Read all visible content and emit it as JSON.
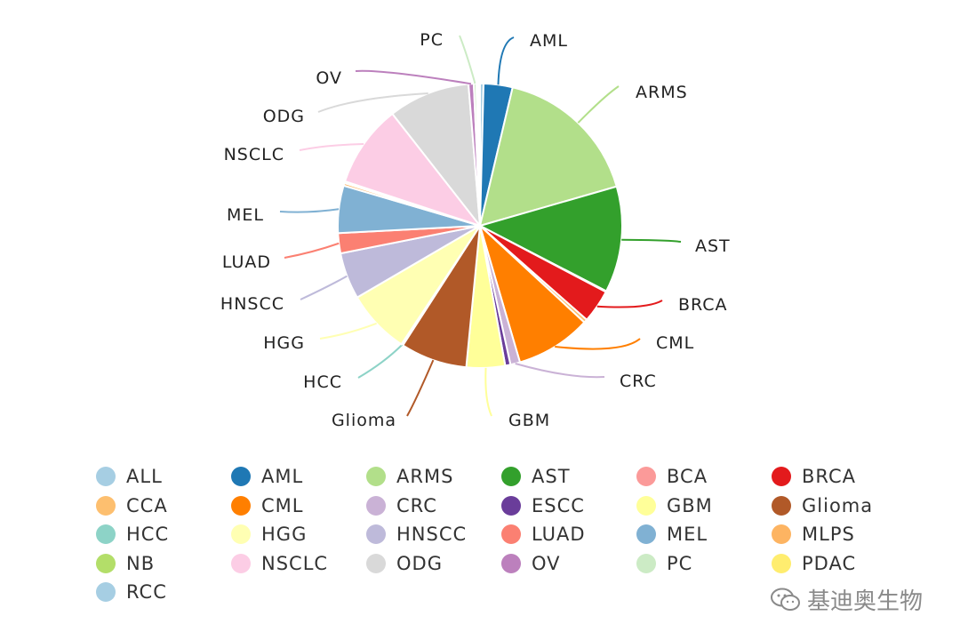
{
  "chart_data": {
    "type": "pie",
    "slices": [
      {
        "label": "ALL",
        "value": 0.4,
        "color": "#a6cee3",
        "callout": false
      },
      {
        "label": "AML",
        "value": 3.3,
        "color": "#1f78b4",
        "callout": true
      },
      {
        "label": "ARMS",
        "value": 16.9,
        "color": "#b2df8a",
        "callout": true
      },
      {
        "label": "AST",
        "value": 12.1,
        "color": "#33a02c",
        "callout": true
      },
      {
        "label": "BCA",
        "value": 0.1,
        "color": "#fb9a99",
        "callout": false
      },
      {
        "label": "BRCA",
        "value": 3.8,
        "color": "#e31a1c",
        "callout": true
      },
      {
        "label": "CCA",
        "value": 0.4,
        "color": "#fdbf6f",
        "callout": false
      },
      {
        "label": "CML",
        "value": 8.6,
        "color": "#ff7f00",
        "callout": true
      },
      {
        "label": "CRC",
        "value": 1.1,
        "color": "#cab2d6",
        "callout": true
      },
      {
        "label": "ESCC",
        "value": 0.6,
        "color": "#6a3d9a",
        "callout": false
      },
      {
        "label": "GBM",
        "value": 4.4,
        "color": "#ffff99",
        "callout": true
      },
      {
        "label": "Glioma",
        "value": 7.6,
        "color": "#b15928",
        "callout": true
      },
      {
        "label": "HCC",
        "value": 0.2,
        "color": "#8dd3c7",
        "callout": true
      },
      {
        "label": "HGG",
        "value": 7.3,
        "color": "#ffffb3",
        "callout": true
      },
      {
        "label": "HNSCC",
        "value": 5.3,
        "color": "#bebada",
        "callout": true
      },
      {
        "label": "LUAD",
        "value": 2.3,
        "color": "#fb8072",
        "callout": true
      },
      {
        "label": "MEL",
        "value": 5.4,
        "color": "#80b1d3",
        "callout": true
      },
      {
        "label": "MLPS",
        "value": 0.3,
        "color": "#fdb462",
        "callout": false
      },
      {
        "label": "NB",
        "value": 0.2,
        "color": "#b3de69",
        "callout": false
      },
      {
        "label": "NSCLC",
        "value": 9.4,
        "color": "#fccde5",
        "callout": true
      },
      {
        "label": "ODG",
        "value": 9.3,
        "color": "#d9d9d9",
        "callout": true
      },
      {
        "label": "OV",
        "value": 0.6,
        "color": "#bc80bd",
        "callout": true
      },
      {
        "label": "PC",
        "value": 0.3,
        "color": "#ccebc5",
        "callout": true
      },
      {
        "label": "PDAC",
        "value": 0.2,
        "color": "#ffed6f",
        "callout": false
      },
      {
        "label": "RCC",
        "value": 0.2,
        "color": "#a6cee3",
        "callout": false
      }
    ],
    "legend": {
      "position": "bottom",
      "columns": 6,
      "items": [
        "ALL",
        "AML",
        "ARMS",
        "AST",
        "BCA",
        "BRCA",
        "CCA",
        "CML",
        "CRC",
        "ESCC",
        "GBM",
        "Glioma",
        "HCC",
        "HGG",
        "HNSCC",
        "LUAD",
        "MEL",
        "MLPS",
        "NB",
        "NSCLC",
        "ODG",
        "OV",
        "PC",
        "PDAC",
        "RCC"
      ]
    }
  },
  "watermark": {
    "text": "基迪奥生物",
    "icon": "wechat-icon"
  }
}
